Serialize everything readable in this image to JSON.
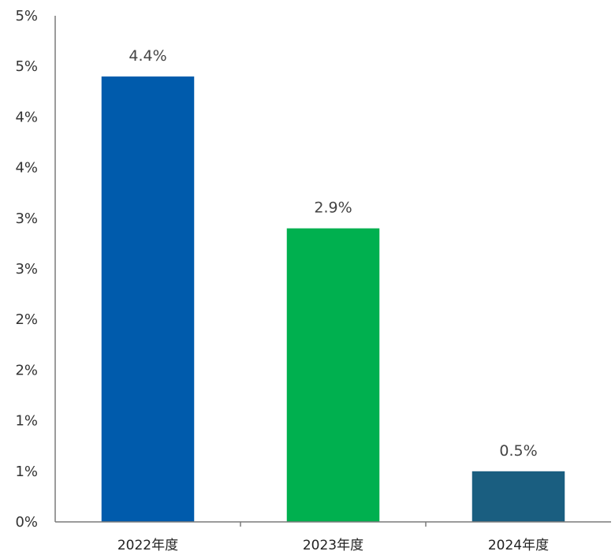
{
  "chart_data": {
    "type": "bar",
    "title": "",
    "xlabel": "",
    "ylabel": "",
    "categories": [
      "2022年度",
      "2023年度",
      "2024年度"
    ],
    "values": [
      4.4,
      2.9,
      0.5
    ],
    "data_labels": [
      "4.4%",
      "2.9%",
      "0.5%"
    ],
    "colors": [
      "#005BAC",
      "#00B04F",
      "#1A5E80"
    ],
    "ylim": [
      0,
      5
    ],
    "y_tick_values": [
      0,
      0.5,
      1,
      1.5,
      2,
      2.5,
      3,
      3.5,
      4,
      4.5,
      5
    ],
    "y_tick_labels": [
      "0%",
      "1%",
      "1%",
      "2%",
      "2%",
      "3%",
      "3%",
      "4%",
      "4%",
      "5%",
      "5%"
    ],
    "grid": false,
    "legend": "none"
  }
}
